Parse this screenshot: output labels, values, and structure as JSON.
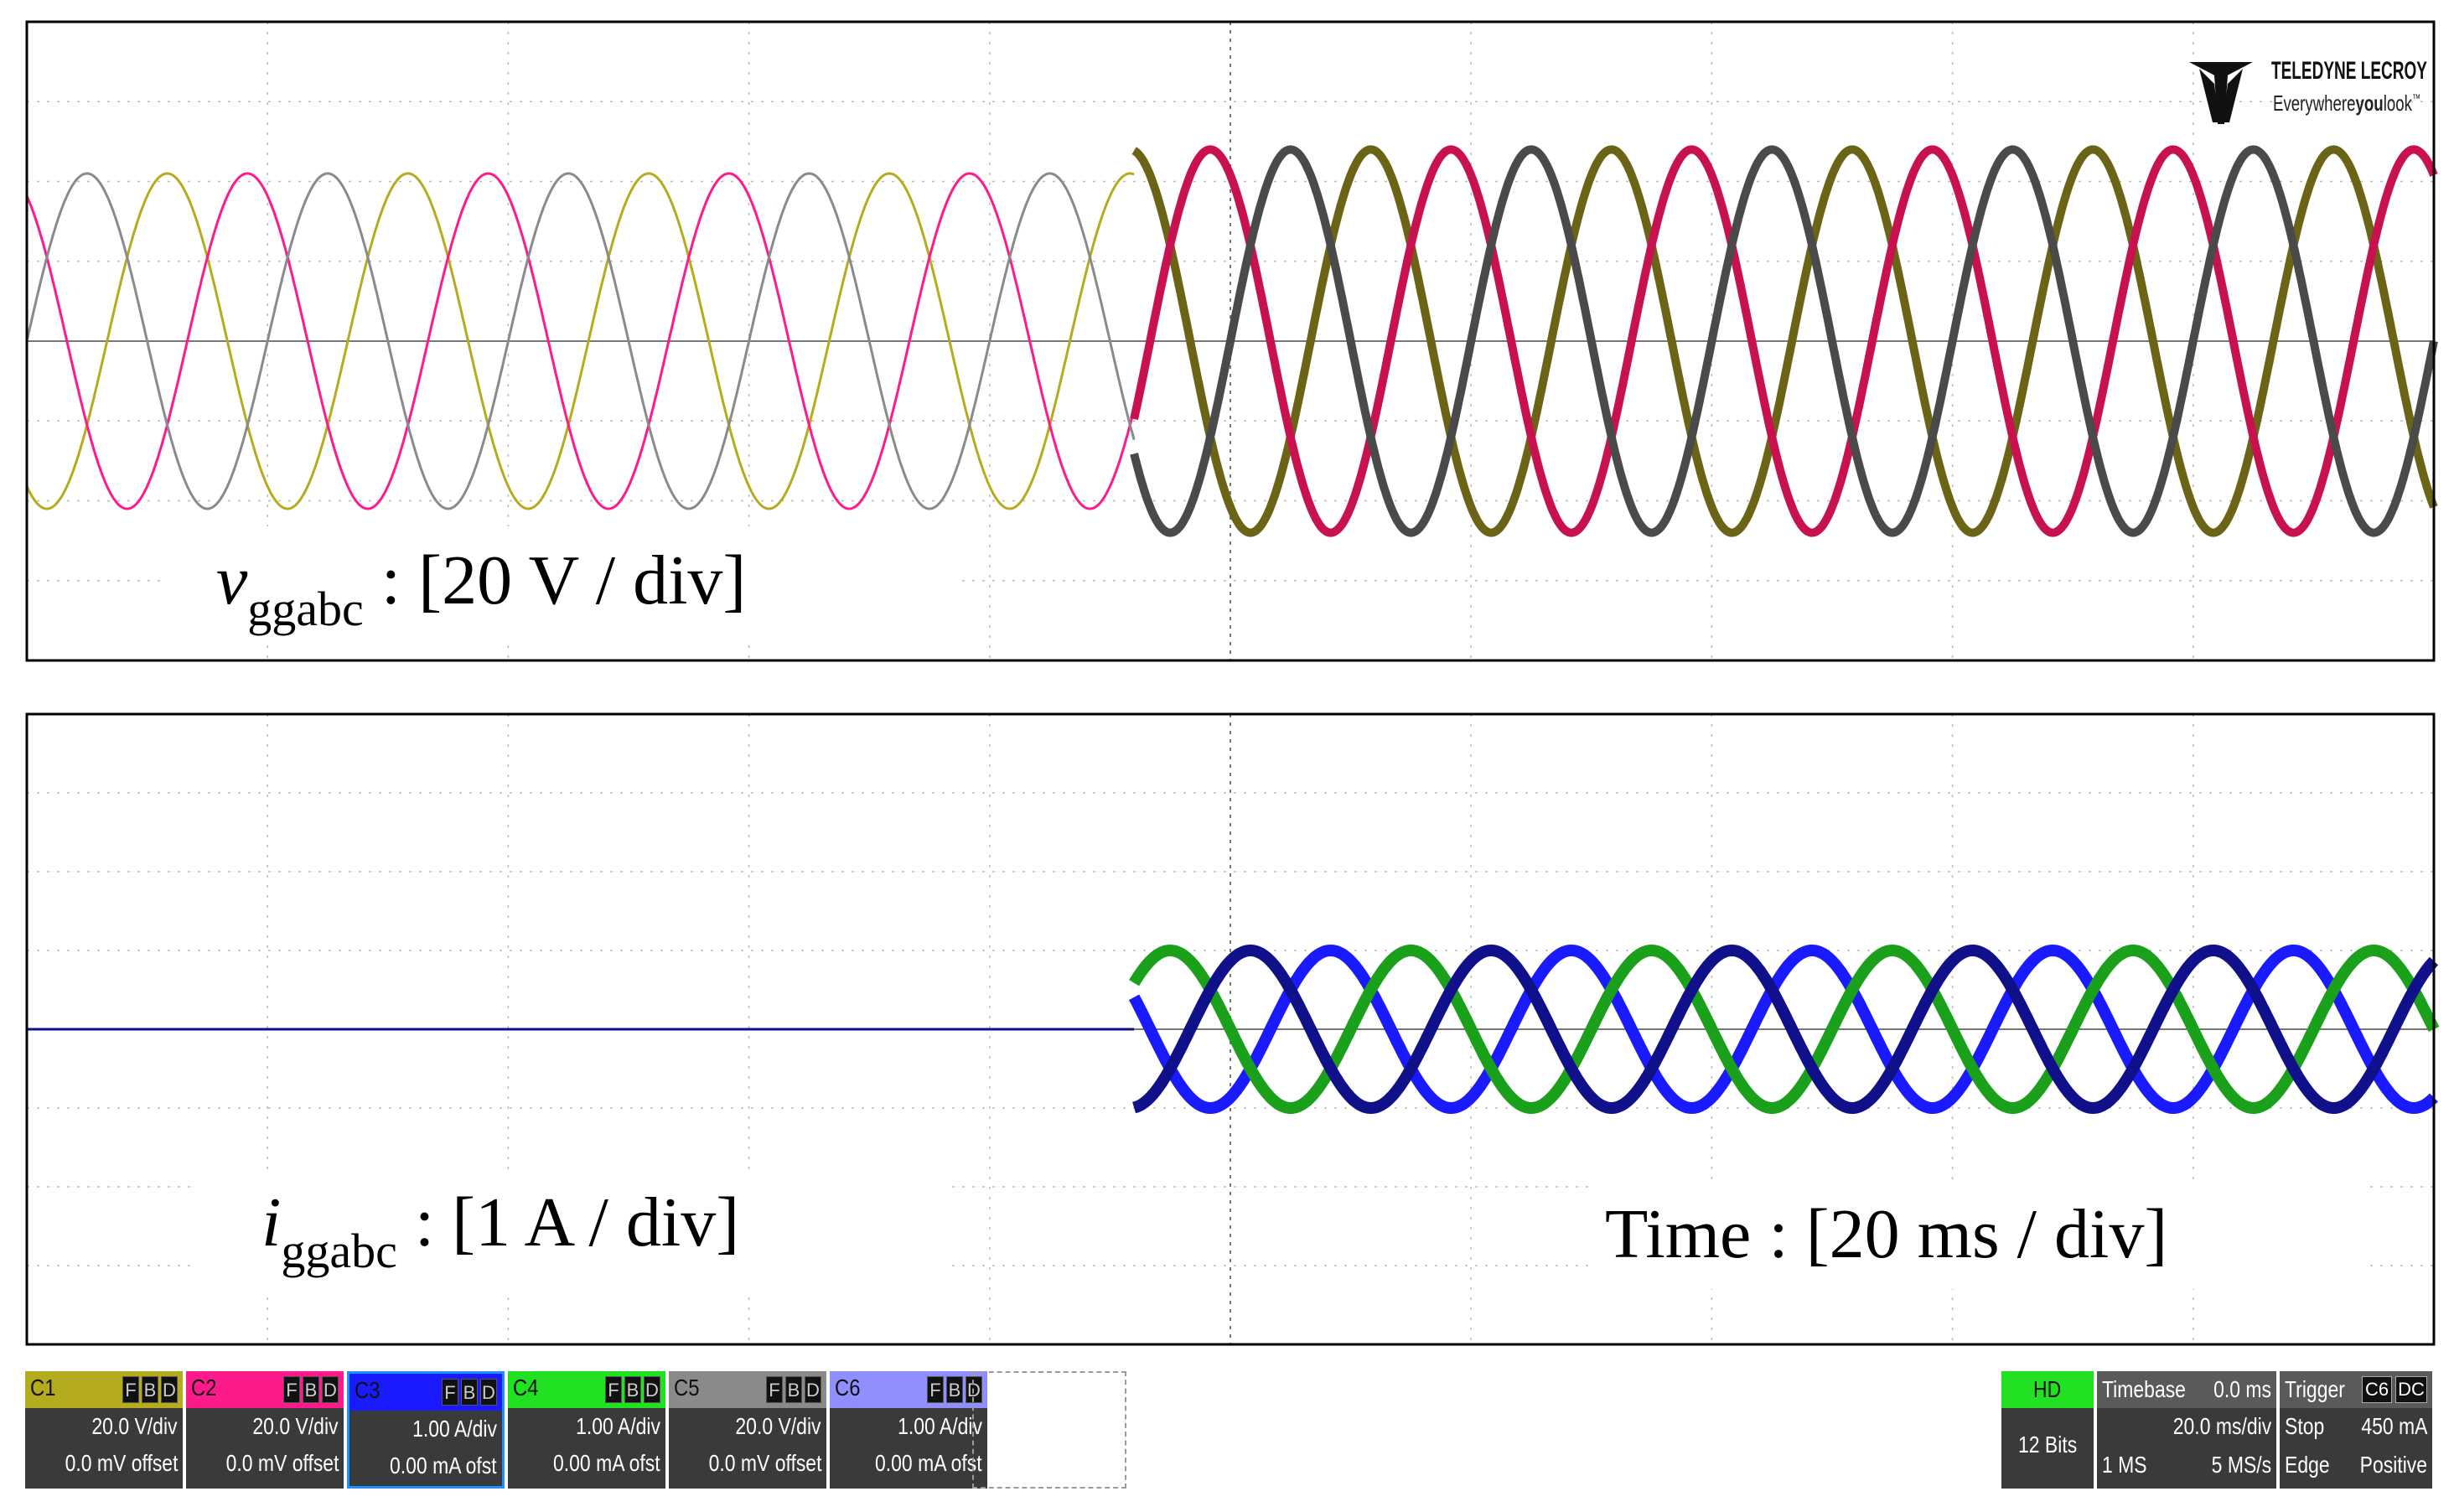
{
  "logo": {
    "brand": "TELEDYNE LECROY",
    "tagline_pre": "Everywhere",
    "tagline_bold": "you",
    "tagline_post": "look",
    "tm": "™"
  },
  "annotations": {
    "voltage_main": "v",
    "voltage_sub": "ggabc",
    "voltage_scale": " : [20 V / div]",
    "current_main": "i",
    "current_sub": "ggabc",
    "current_scale": " : [1 A / div]",
    "time_scale": "Time : [20 ms / div]"
  },
  "channels": [
    {
      "name": "C1",
      "color": "#b5ab1e",
      "scale": "20.0 V/div",
      "offset": "0.0 mV offset",
      "selected": false
    },
    {
      "name": "C2",
      "color": "#ff1a8c",
      "scale": "20.0 V/div",
      "offset": "0.0 mV offset",
      "selected": false
    },
    {
      "name": "C3",
      "color": "#1a1aff",
      "scale": "1.00 A/div",
      "offset": "0.00 mA ofst",
      "selected": true
    },
    {
      "name": "C4",
      "color": "#22e022",
      "scale": "1.00 A/div",
      "offset": "0.00 mA ofst",
      "selected": false
    },
    {
      "name": "C5",
      "color": "#8a8a8a",
      "scale": "20.0 V/div",
      "offset": "0.0 mV offset",
      "selected": false
    },
    {
      "name": "C6",
      "color": "#8f8fff",
      "scale": "1.00 A/div",
      "offset": "0.00 mA ofst",
      "selected": false
    }
  ],
  "fbd": [
    "F",
    "B",
    "D"
  ],
  "acquisition": {
    "mode": "HD",
    "bits": "12 Bits"
  },
  "timebase": {
    "label": "Timebase",
    "delay": "0.0 ms",
    "scale": "20.0 ms/div",
    "points": "1 MS",
    "rate": "5 MS/s"
  },
  "trigger": {
    "label": "Trigger",
    "source": "C6",
    "coupling": "DC",
    "mode": "Stop",
    "level": "450 mA",
    "type": "Edge",
    "slope": "Positive"
  },
  "chart_data": [
    {
      "type": "line",
      "panel": "voltage",
      "x_unit": "ms",
      "xlim": [
        -100,
        100
      ],
      "y_unit": "V",
      "ylim": [
        -80,
        80
      ],
      "grid": true,
      "divisions": {
        "x": 10,
        "y": 8
      },
      "transition_time": -8,
      "series": [
        {
          "channel": "C1",
          "color_before": "#b5ab1e",
          "color_after": "#6b6416",
          "amplitude_before": 42,
          "amplitude_after": 48,
          "frequency_hz": 50,
          "phase_deg": 240
        },
        {
          "channel": "C2",
          "color_before": "#ff1a8c",
          "color_after": "#c8124f",
          "amplitude_before": 42,
          "amplitude_after": 48,
          "frequency_hz": 50,
          "phase_deg": 120
        },
        {
          "channel": "C5",
          "color_before": "#8a8a8a",
          "color_after": "#4a4a4a",
          "amplitude_before": 42,
          "amplitude_after": 48,
          "frequency_hz": 50,
          "phase_deg": 0
        }
      ]
    },
    {
      "type": "line",
      "panel": "current",
      "x_unit": "ms",
      "xlim": [
        -100,
        100
      ],
      "y_unit": "A",
      "ylim": [
        -4,
        4
      ],
      "grid": true,
      "divisions": {
        "x": 10,
        "y": 8
      },
      "transition_time": -8,
      "series": [
        {
          "channel": "C3",
          "color": "#1a1aff",
          "amplitude_before": 0,
          "amplitude_after": 1.0,
          "frequency_hz": 50,
          "phase_deg": 300
        },
        {
          "channel": "C4",
          "color": "#1aa01a",
          "amplitude_before": 0,
          "amplitude_after": 1.0,
          "frequency_hz": 50,
          "phase_deg": 180
        },
        {
          "channel": "C6",
          "color": "#10108a",
          "amplitude_before": 0,
          "amplitude_after": 1.0,
          "frequency_hz": 50,
          "phase_deg": 60
        }
      ]
    }
  ]
}
